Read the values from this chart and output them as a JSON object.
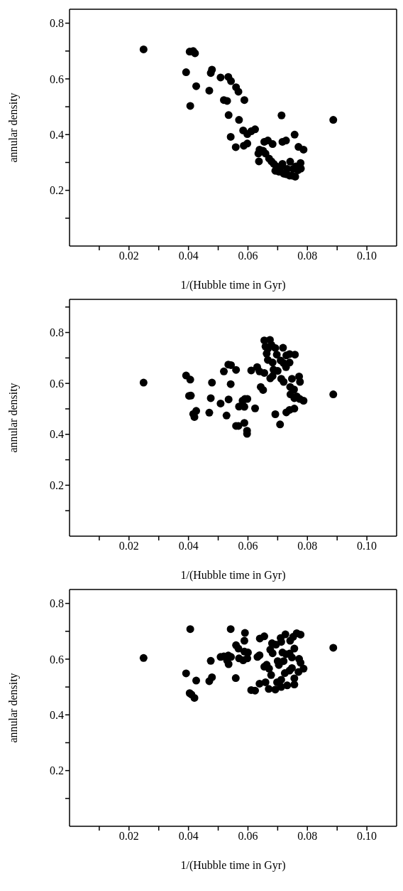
{
  "chart_data": [
    {
      "type": "scatter",
      "xlabel": "1/(Hubble time in Gyr)",
      "ylabel": "annular density",
      "xlim": [
        0,
        0.11
      ],
      "ylim": [
        0,
        0.85
      ],
      "marker": "circle",
      "xticks": [
        {
          "value": 0.01,
          "label": null
        },
        0.02,
        {
          "value": 0.03,
          "label": null
        },
        0.04,
        {
          "value": 0.05,
          "label": null
        },
        0.06,
        {
          "value": 0.07,
          "label": null
        },
        0.08,
        {
          "value": 0.09,
          "label": null
        },
        {
          "value": 0.1,
          "label": "0.10"
        }
      ],
      "yticks": [
        {
          "value": 0.1,
          "label": null
        },
        0.2,
        {
          "value": 0.3,
          "label": null
        },
        0.4,
        {
          "value": 0.5,
          "label": null
        },
        0.6,
        {
          "value": 0.7,
          "label": null
        },
        0.8
      ],
      "series": [
        {
          "color": "#000000",
          "x": [
            0.0249,
            0.0404,
            0.0416,
            0.0422,
            0.0392,
            0.0426,
            0.0406,
            0.047,
            0.0475,
            0.0479,
            0.0508,
            0.0534,
            0.0543,
            0.056,
            0.0568,
            0.0588,
            0.0519,
            0.053,
            0.0535,
            0.057,
            0.0713,
            0.0887,
            0.0542,
            0.0559,
            0.0584,
            0.0598,
            0.0611,
            0.0624,
            0.0586,
            0.0598,
            0.0635,
            0.0639,
            0.0637,
            0.0655,
            0.0667,
            0.0683,
            0.0651,
            0.0659,
            0.0671,
            0.0679,
            0.0687,
            0.0696,
            0.0692,
            0.0704,
            0.0716,
            0.072,
            0.0728,
            0.074,
            0.0748,
            0.0759,
            0.0742,
            0.0716,
            0.0728,
            0.0757,
            0.077,
            0.0787,
            0.0777,
            0.0778,
            0.0768,
            0.0752,
            0.0761,
            0.0732,
            0.0709
          ],
          "values": [
            0.706,
            0.698,
            0.7,
            0.692,
            0.624,
            0.574,
            0.503,
            0.558,
            0.621,
            0.633,
            0.605,
            0.607,
            0.592,
            0.57,
            0.554,
            0.524,
            0.524,
            0.521,
            0.47,
            0.453,
            0.469,
            0.453,
            0.392,
            0.355,
            0.415,
            0.402,
            0.412,
            0.419,
            0.36,
            0.368,
            0.332,
            0.346,
            0.304,
            0.374,
            0.379,
            0.366,
            0.342,
            0.332,
            0.314,
            0.304,
            0.295,
            0.286,
            0.27,
            0.267,
            0.295,
            0.26,
            0.258,
            0.253,
            0.253,
            0.249,
            0.303,
            0.374,
            0.379,
            0.4,
            0.356,
            0.346,
            0.298,
            0.278,
            0.272,
            0.277,
            0.286,
            0.277,
            0.281
          ]
        }
      ]
    },
    {
      "type": "scatter",
      "xlabel": "1/(Hubble time in Gyr)",
      "ylabel": "annular density",
      "xlim": [
        0,
        0.11
      ],
      "ylim": [
        0,
        0.93
      ],
      "marker": "circle",
      "xticks": [
        {
          "value": 0.01,
          "label": null
        },
        0.02,
        {
          "value": 0.03,
          "label": null
        },
        0.04,
        {
          "value": 0.05,
          "label": null
        },
        0.06,
        {
          "value": 0.07,
          "label": null
        },
        0.08,
        {
          "value": 0.09,
          "label": null
        },
        {
          "value": 0.1,
          "label": "0.10"
        }
      ],
      "yticks": [
        {
          "value": 0.1,
          "label": null
        },
        0.2,
        {
          "value": 0.3,
          "label": null
        },
        0.4,
        {
          "value": 0.5,
          "label": null
        },
        0.6,
        {
          "value": 0.7,
          "label": null
        },
        0.8,
        {
          "value": 0.9,
          "label": null
        }
      ],
      "series": [
        {
          "color": "#000000",
          "x": [
            0.0249,
            0.0392,
            0.0406,
            0.0402,
            0.0408,
            0.0426,
            0.0416,
            0.042,
            0.047,
            0.0475,
            0.0479,
            0.0508,
            0.0519,
            0.0528,
            0.0534,
            0.0543,
            0.0535,
            0.0542,
            0.056,
            0.056,
            0.0568,
            0.057,
            0.0582,
            0.059,
            0.0598,
            0.0588,
            0.0588,
            0.0597,
            0.0597,
            0.0611,
            0.0624,
            0.0631,
            0.0639,
            0.0643,
            0.0651,
            0.0655,
            0.0655,
            0.0674,
            0.0659,
            0.0667,
            0.0663,
            0.0667,
            0.0675,
            0.0683,
            0.0683,
            0.0679,
            0.0692,
            0.0697,
            0.0686,
            0.07,
            0.0692,
            0.0708,
            0.071,
            0.072,
            0.0728,
            0.0718,
            0.0712,
            0.072,
            0.0729,
            0.074,
            0.0758,
            0.074,
            0.0729,
            0.074,
            0.0756,
            0.0748,
            0.0742,
            0.0755,
            0.0743,
            0.0764,
            0.0756,
            0.0772,
            0.0775,
            0.0774,
            0.0787,
            0.0887
          ],
          "values": [
            0.603,
            0.631,
            0.615,
            0.551,
            0.552,
            0.492,
            0.48,
            0.468,
            0.485,
            0.542,
            0.603,
            0.521,
            0.647,
            0.474,
            0.674,
            0.672,
            0.537,
            0.597,
            0.653,
            0.433,
            0.433,
            0.509,
            0.532,
            0.539,
            0.539,
            0.508,
            0.445,
            0.414,
            0.402,
            0.651,
            0.502,
            0.664,
            0.647,
            0.586,
            0.574,
            0.641,
            0.769,
            0.771,
            0.745,
            0.736,
            0.717,
            0.692,
            0.62,
            0.629,
            0.682,
            0.751,
            0.739,
            0.713,
            0.654,
            0.649,
            0.479,
            0.439,
            0.69,
            0.68,
            0.664,
            0.74,
            0.618,
            0.606,
            0.71,
            0.715,
            0.713,
            0.682,
            0.486,
            0.496,
            0.501,
            0.618,
            0.586,
            0.576,
            0.557,
            0.549,
            0.542,
            0.627,
            0.606,
            0.539,
            0.532,
            0.557
          ]
        }
      ]
    },
    {
      "type": "scatter",
      "xlabel": "1/(Hubble time in Gyr)",
      "ylabel": "annular density",
      "xlim": [
        0,
        0.11
      ],
      "ylim": [
        0,
        0.85
      ],
      "marker": "circle",
      "xticks": [
        {
          "value": 0.01,
          "label": null
        },
        0.02,
        {
          "value": 0.03,
          "label": null
        },
        0.04,
        {
          "value": 0.05,
          "label": null
        },
        0.06,
        {
          "value": 0.07,
          "label": null
        },
        0.08,
        {
          "value": 0.09,
          "label": null
        },
        {
          "value": 0.1,
          "label": "0.10"
        }
      ],
      "yticks": [
        {
          "value": 0.1,
          "label": null
        },
        0.2,
        {
          "value": 0.3,
          "label": null
        },
        0.4,
        {
          "value": 0.5,
          "label": null
        },
        0.6,
        {
          "value": 0.7,
          "label": null
        },
        0.8
      ],
      "series": [
        {
          "color": "#000000",
          "x": [
            0.0249,
            0.0406,
            0.0392,
            0.0426,
            0.0404,
            0.041,
            0.042,
            0.047,
            0.0479,
            0.0475,
            0.0508,
            0.0519,
            0.0534,
            0.0543,
            0.053,
            0.0535,
            0.0542,
            0.056,
            0.0568,
            0.0559,
            0.057,
            0.0584,
            0.059,
            0.0588,
            0.0588,
            0.06,
            0.0598,
            0.0611,
            0.0624,
            0.0632,
            0.0639,
            0.064,
            0.0655,
            0.0639,
            0.0659,
            0.0655,
            0.0663,
            0.0671,
            0.0678,
            0.067,
            0.0692,
            0.0675,
            0.0683,
            0.0681,
            0.0694,
            0.07,
            0.0704,
            0.072,
            0.071,
            0.0712,
            0.0726,
            0.0716,
            0.0728,
            0.0698,
            0.0712,
            0.0724,
            0.0712,
            0.0732,
            0.0742,
            0.0752,
            0.0764,
            0.0777,
            0.074,
            0.0756,
            0.0748,
            0.074,
            0.0748,
            0.0756,
            0.0756,
            0.0772,
            0.0777,
            0.077,
            0.0787,
            0.0887
          ],
          "values": [
            0.604,
            0.708,
            0.549,
            0.523,
            0.478,
            0.473,
            0.461,
            0.521,
            0.535,
            0.594,
            0.608,
            0.61,
            0.613,
            0.608,
            0.596,
            0.582,
            0.708,
            0.65,
            0.638,
            0.532,
            0.603,
            0.596,
            0.694,
            0.666,
            0.627,
            0.624,
            0.603,
            0.489,
            0.487,
            0.608,
            0.614,
            0.674,
            0.682,
            0.512,
            0.517,
            0.573,
            0.58,
            0.566,
            0.543,
            0.493,
            0.491,
            0.634,
            0.621,
            0.657,
            0.652,
            0.593,
            0.579,
            0.593,
            0.676,
            0.662,
            0.689,
            0.624,
            0.618,
            0.517,
            0.526,
            0.55,
            0.5,
            0.506,
            0.666,
            0.68,
            0.693,
            0.688,
            0.62,
            0.638,
            0.606,
            0.559,
            0.568,
            0.531,
            0.509,
            0.601,
            0.587,
            0.554,
            0.566,
            0.641
          ]
        }
      ]
    }
  ]
}
